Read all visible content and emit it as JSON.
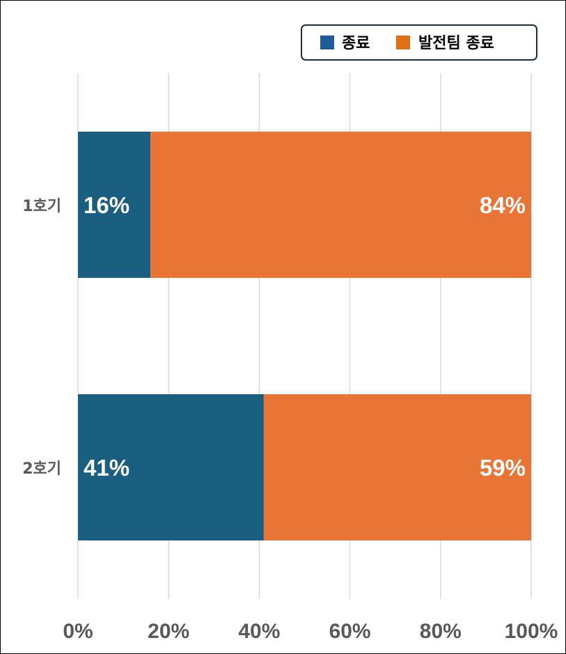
{
  "chart_data": {
    "type": "bar",
    "orientation": "horizontal",
    "stacked": true,
    "categories": [
      "1호기",
      "2호기"
    ],
    "series": [
      {
        "name": "종료",
        "values": [
          16,
          41
        ],
        "labels": [
          "16%",
          "41%"
        ],
        "color": "#1a5e80",
        "legend_color": "#1f5c99"
      },
      {
        "name": "발전팀 종료",
        "values": [
          84,
          59
        ],
        "labels": [
          "84%",
          "59%"
        ],
        "color": "#e87435",
        "legend_color": "#e07016"
      }
    ],
    "x_ticks": [
      "0%",
      "20%",
      "40%",
      "60%",
      "80%",
      "100%"
    ],
    "xlim": [
      0,
      100
    ],
    "grid": true,
    "legend_position": "top-right"
  }
}
